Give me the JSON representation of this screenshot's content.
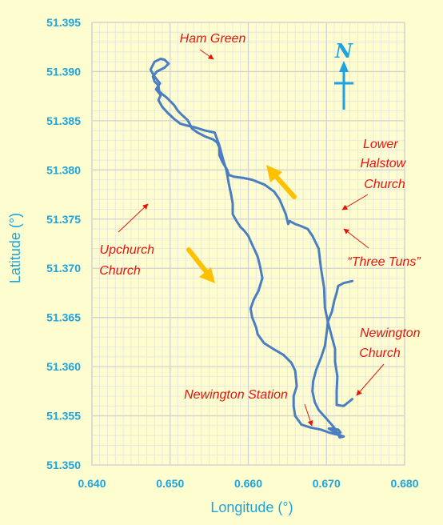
{
  "chart_data": {
    "type": "line",
    "title": "",
    "xlabel": "Longitude (°)",
    "ylabel": "Latitude (°)",
    "xlim": [
      0.64,
      0.68
    ],
    "ylim": [
      51.35,
      51.395
    ],
    "x_ticks": [
      "0.640",
      "0.650",
      "0.660",
      "0.670",
      "0.680"
    ],
    "y_ticks": [
      "51.350",
      "51.355",
      "51.360",
      "51.365",
      "51.370",
      "51.375",
      "51.380",
      "51.385",
      "51.390",
      "51.395"
    ],
    "grid": true,
    "minor_grid": true,
    "series": [
      {
        "name": "",
        "x": [
          0.6733,
          0.6722,
          0.6713,
          0.6713,
          0.6714,
          0.6711,
          0.6711,
          0.6707,
          0.6702,
          0.6698,
          0.6697,
          0.6693,
          0.669,
          0.6682,
          0.6676,
          0.6667,
          0.666,
          0.6653,
          0.6651,
          0.6648,
          0.664,
          0.6633,
          0.6621,
          0.6605,
          0.6593,
          0.6582,
          0.6575,
          0.6573,
          0.6567,
          0.6563,
          0.6563,
          0.656,
          0.6555,
          0.6545,
          0.6535,
          0.6528,
          0.6525,
          0.6522,
          0.6515,
          0.651,
          0.6505,
          0.65,
          0.6495,
          0.649,
          0.6486,
          0.6485,
          0.648,
          0.6478,
          0.6483,
          0.6493,
          0.6498,
          0.6493,
          0.6488,
          0.648,
          0.6475,
          0.648,
          0.6487,
          0.6482,
          0.6488,
          0.6485,
          0.649,
          0.6497,
          0.6505,
          0.6513,
          0.6522,
          0.6533,
          0.6545,
          0.6557,
          0.6563,
          0.6568,
          0.6572,
          0.6575,
          0.6578,
          0.658,
          0.658,
          0.6585,
          0.659,
          0.6595,
          0.66,
          0.6605,
          0.6612,
          0.6615,
          0.6618,
          0.6613,
          0.6607,
          0.6603,
          0.6605,
          0.661,
          0.6612,
          0.662,
          0.6632,
          0.6645,
          0.6655,
          0.666,
          0.6662,
          0.6658,
          0.6658,
          0.666,
          0.6668,
          0.668,
          0.6693,
          0.6703,
          0.6713,
          0.6718,
          0.6715,
          0.6708,
          0.6703,
          0.6707,
          0.6712,
          0.6718,
          0.6722,
          0.6717,
          0.671,
          0.67,
          0.669,
          0.6685,
          0.6682,
          0.6683,
          0.6687,
          0.6693,
          0.6698,
          0.67,
          0.6702,
          0.6707,
          0.671,
          0.6713,
          0.6715,
          0.6722,
          0.6733
        ],
        "y": [
          51.3567,
          51.356,
          51.3561,
          51.3575,
          51.359,
          51.3605,
          51.3618,
          51.363,
          51.3645,
          51.366,
          51.368,
          51.37,
          51.372,
          51.3733,
          51.374,
          51.3743,
          51.3745,
          51.3748,
          51.3745,
          51.3755,
          51.377,
          51.3778,
          51.3785,
          51.379,
          51.3792,
          51.3793,
          51.3795,
          51.38,
          51.3808,
          51.3815,
          51.3823,
          51.3828,
          51.3831,
          51.3834,
          51.3838,
          51.3842,
          51.3847,
          51.3851,
          51.3856,
          51.386,
          51.3866,
          51.387,
          51.3874,
          51.3877,
          51.388,
          51.3886,
          51.389,
          51.3895,
          51.39,
          51.3904,
          51.3908,
          51.3912,
          51.3913,
          51.391,
          51.3902,
          51.3895,
          51.3888,
          51.3882,
          51.3876,
          51.3871,
          51.3864,
          51.3858,
          51.3852,
          51.3847,
          51.3845,
          51.3843,
          51.384,
          51.3838,
          51.3825,
          51.381,
          51.38,
          51.3786,
          51.3775,
          51.3766,
          51.3755,
          51.3748,
          51.3742,
          51.3738,
          51.3733,
          51.3724,
          51.3712,
          51.3702,
          51.369,
          51.3677,
          51.3668,
          51.3659,
          51.365,
          51.364,
          51.3633,
          51.3624,
          51.3618,
          51.3612,
          51.3604,
          51.3596,
          51.358,
          51.357,
          51.356,
          51.355,
          51.3541,
          51.3538,
          51.3536,
          51.3533,
          51.3531,
          51.3533,
          51.3536,
          51.3537,
          51.3537,
          51.3535,
          51.3533,
          51.353,
          51.3529,
          51.3528,
          51.3538,
          51.3547,
          51.3556,
          51.3564,
          51.3575,
          51.3585,
          51.3597,
          51.3609,
          51.3621,
          51.3633,
          51.3646,
          51.3656,
          51.3667,
          51.3675,
          51.3682,
          51.3685,
          51.3687
        ]
      }
    ],
    "annotations": [
      {
        "text": "Ham Green",
        "lines": [
          "Ham Green"
        ],
        "lon": 0.6561,
        "lat": 51.3915
      },
      {
        "text": "Lower Halstow Church",
        "lines": [
          "Lower",
          "Halstow",
          "Church"
        ],
        "lon": 0.6722,
        "lat": 51.3763
      },
      {
        "text": "Upchurch Church",
        "lines": [
          "Upchurch",
          "Church"
        ],
        "lon": 0.6473,
        "lat": 51.3766
      },
      {
        "text": "“Three Tuns”",
        "lines": [
          "“Three Tuns”"
        ],
        "lon": 0.6723,
        "lat": 51.3736
      },
      {
        "text": "Newington Church",
        "lines": [
          "Newington",
          "Church"
        ],
        "lon": 0.6735,
        "lat": 51.3558
      },
      {
        "text": "Newington Station",
        "lines": [
          "Newington Station"
        ],
        "lon": 0.6683,
        "lat": 51.3537
      }
    ],
    "compass_label": "N"
  },
  "colors": {
    "background": "#FDFDCF",
    "route": "#4A7EC1",
    "axis_text": "#1FA3DF",
    "annotation": "#E5150E",
    "direction_arrow": "#FFC000",
    "compass": "#1FA3DF",
    "grid_major": "#D3D3D3",
    "grid_minor": "#E4E4E4"
  }
}
